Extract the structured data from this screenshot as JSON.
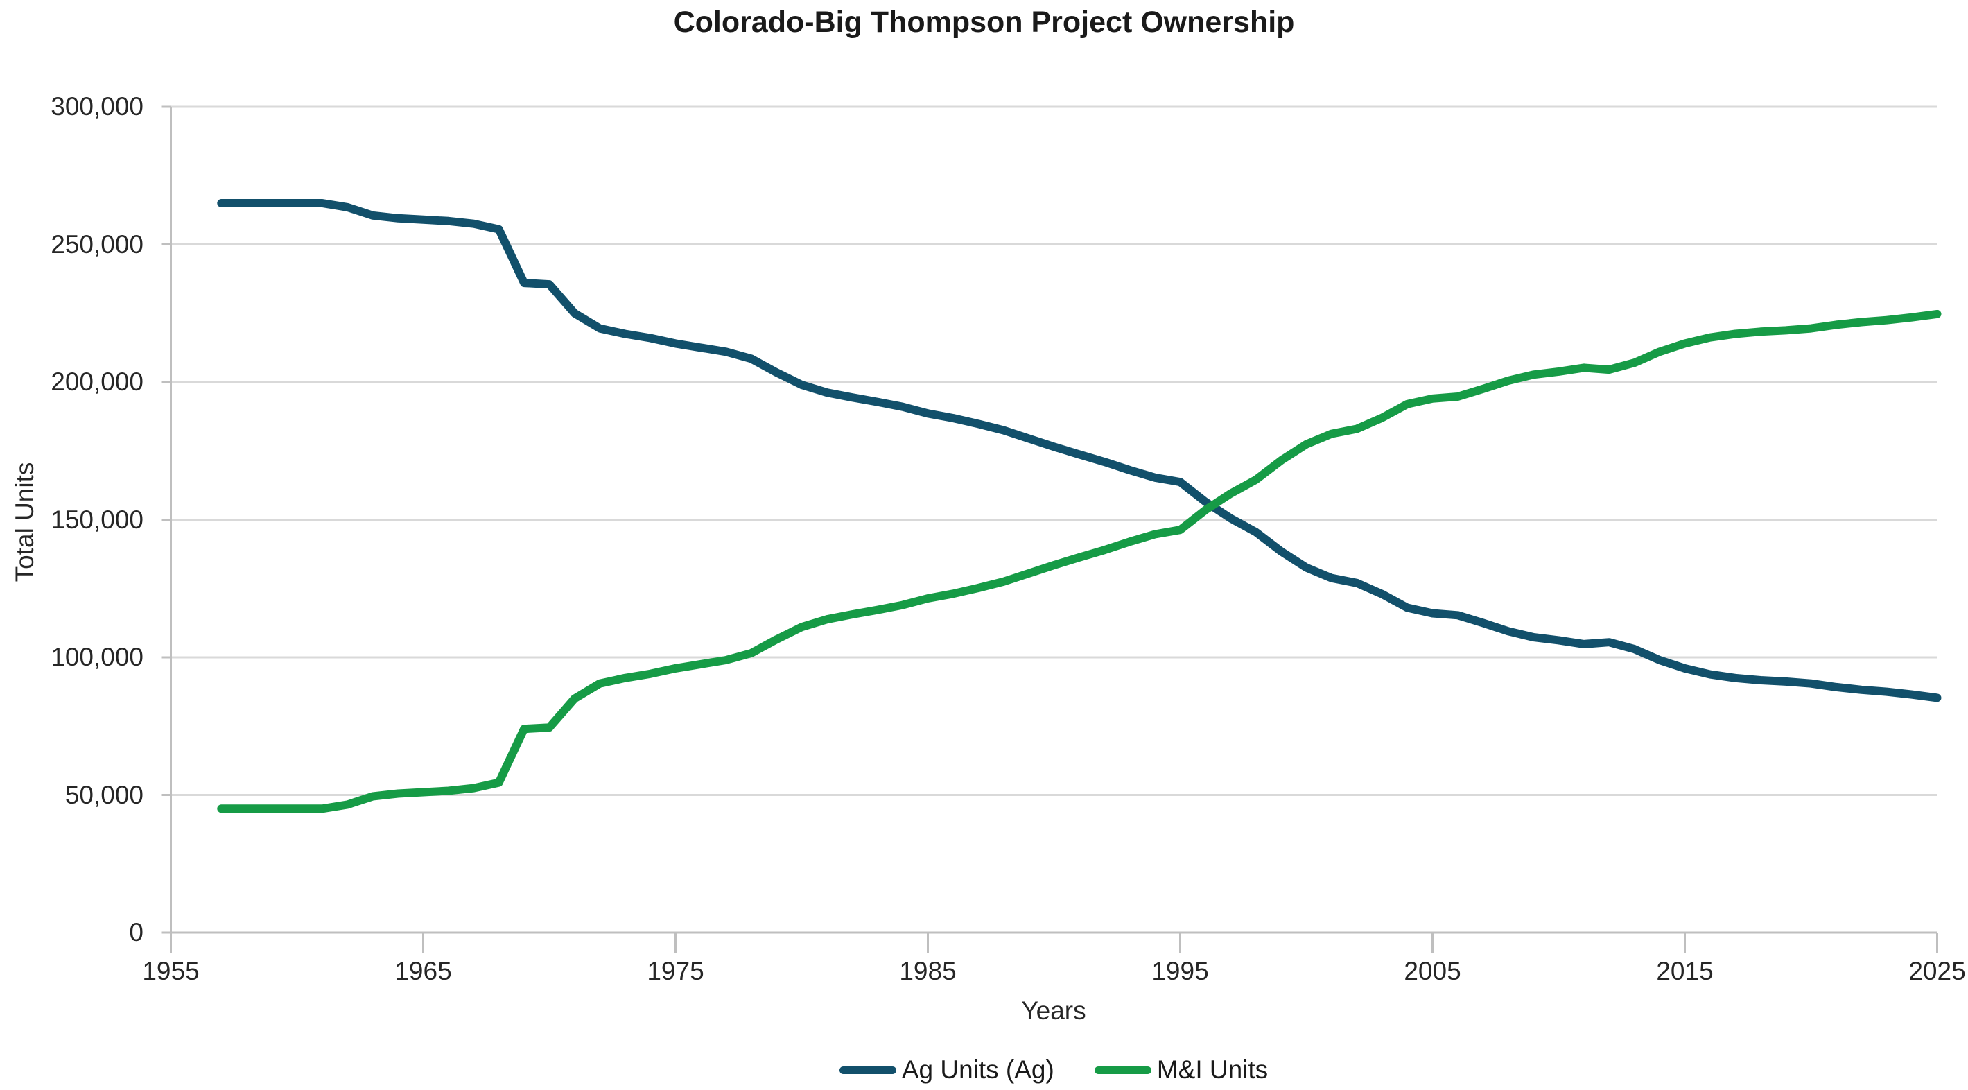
{
  "title": "Colorado-Big Thompson Project Ownership",
  "colors": {
    "ag_line": "#12506b",
    "mi_line": "#169b46",
    "gridline": "#d9d9d9",
    "axis": "#bfbfbf",
    "text": "#262626"
  },
  "chart_data": {
    "type": "line",
    "title": "Colorado-Big Thompson Project Ownership",
    "xlabel": "Years",
    "ylabel": "Total Units",
    "xlim": [
      1955,
      2025
    ],
    "ylim": [
      0,
      300000
    ],
    "xticks": [
      1955,
      1965,
      1975,
      1985,
      1995,
      2005,
      2015,
      2025
    ],
    "yticks": [
      0,
      50000,
      100000,
      150000,
      200000,
      250000,
      300000
    ],
    "grid": true,
    "legend_position": "bottom",
    "x": [
      1957,
      1958,
      1959,
      1960,
      1961,
      1962,
      1963,
      1964,
      1965,
      1966,
      1967,
      1968,
      1969,
      1970,
      1971,
      1972,
      1973,
      1974,
      1975,
      1976,
      1977,
      1978,
      1979,
      1980,
      1981,
      1982,
      1983,
      1984,
      1985,
      1986,
      1987,
      1988,
      1989,
      1990,
      1991,
      1992,
      1993,
      1994,
      1995,
      1996,
      1997,
      1998,
      1999,
      2000,
      2001,
      2002,
      2003,
      2004,
      2005,
      2006,
      2007,
      2008,
      2009,
      2010,
      2011,
      2012,
      2013,
      2014,
      2015,
      2016,
      2017,
      2018,
      2019,
      2020,
      2021,
      2022,
      2023,
      2024,
      2025
    ],
    "series": [
      {
        "name": "Ag Units (Ag)",
        "color": "#12506b",
        "values": [
          265000,
          265000,
          265000,
          265000,
          265000,
          263500,
          260500,
          259500,
          259000,
          258500,
          257500,
          255500,
          236000,
          235500,
          225000,
          219500,
          217500,
          216000,
          214000,
          212500,
          211000,
          208500,
          203500,
          199000,
          196200,
          194400,
          192800,
          191000,
          188600,
          186900,
          184800,
          182500,
          179500,
          176500,
          173700,
          171000,
          168000,
          165300,
          163700,
          156500,
          150500,
          145500,
          138500,
          132600,
          128800,
          127000,
          123000,
          118000,
          116000,
          115300,
          112500,
          109500,
          107300,
          106200,
          104800,
          105500,
          103000,
          99000,
          96000,
          93800,
          92500,
          91700,
          91200,
          90500,
          89200,
          88200,
          87500,
          86500,
          85300
        ]
      },
      {
        "name": "M&I Units",
        "color": "#169b46",
        "values": [
          45000,
          45000,
          45000,
          45000,
          45000,
          46500,
          49500,
          50500,
          51000,
          51500,
          52500,
          54500,
          74000,
          74500,
          85000,
          90500,
          92500,
          94000,
          96000,
          97500,
          99000,
          101500,
          106500,
          111000,
          113800,
          115600,
          117200,
          119000,
          121400,
          123100,
          125200,
          127500,
          130500,
          133500,
          136300,
          139000,
          142000,
          144700,
          146300,
          153500,
          159500,
          164500,
          171500,
          177400,
          181200,
          183000,
          187000,
          192000,
          194000,
          194700,
          197500,
          200500,
          202700,
          203800,
          205200,
          204500,
          207000,
          211000,
          214000,
          216200,
          217500,
          218300,
          218800,
          219500,
          220800,
          221800,
          222500,
          223500,
          224700
        ]
      }
    ]
  }
}
